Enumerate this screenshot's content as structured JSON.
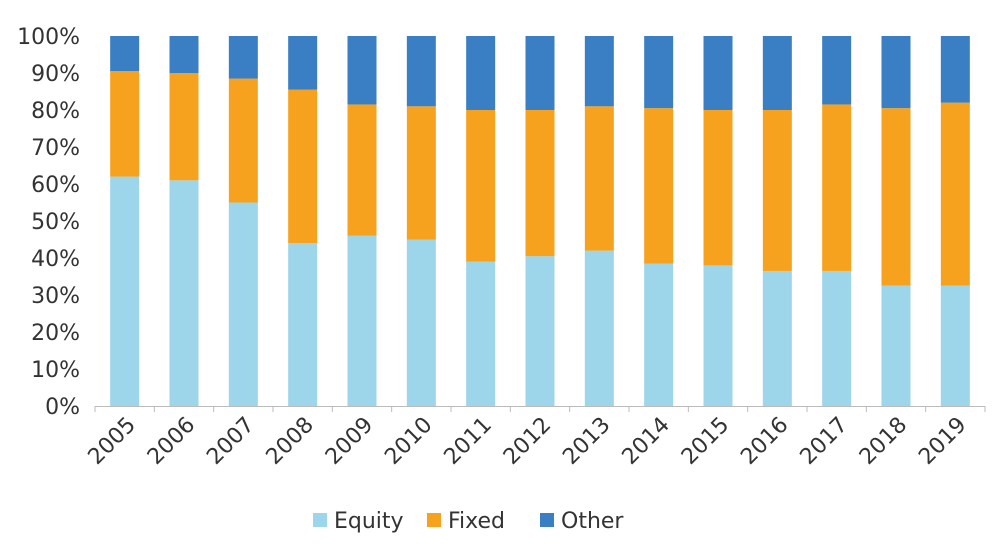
{
  "chart_data": {
    "type": "bar",
    "stacked": true,
    "title": "",
    "xlabel": "",
    "ylabel": "",
    "ylim": [
      0,
      100
    ],
    "yticks": [
      "0%",
      "10%",
      "20%",
      "30%",
      "40%",
      "50%",
      "60%",
      "70%",
      "80%",
      "90%",
      "100%"
    ],
    "categories": [
      "2005",
      "2006",
      "2007",
      "2008",
      "2009",
      "2010",
      "2011",
      "2012",
      "2013",
      "2014",
      "2015",
      "2016",
      "2017",
      "2018",
      "2019"
    ],
    "series": [
      {
        "name": "Equity",
        "color": "#9dd5ea",
        "values": [
          62,
          61,
          55,
          44,
          46,
          45,
          39,
          40.5,
          42,
          38.5,
          38,
          36.5,
          36.5,
          32.5,
          32.5
        ]
      },
      {
        "name": "Fixed",
        "color": "#f6a21e",
        "values": [
          28.5,
          29,
          33.5,
          41.5,
          35.5,
          36,
          41,
          39.5,
          39,
          42,
          42,
          43.5,
          45,
          48,
          49.5
        ]
      },
      {
        "name": "Other",
        "color": "#3a7fc3",
        "values": [
          9.5,
          10,
          11.5,
          14.5,
          18.5,
          19,
          20,
          20,
          19,
          19.5,
          20,
          20,
          18.5,
          19.5,
          18
        ]
      }
    ],
    "legend": "bottom",
    "grid": false
  }
}
